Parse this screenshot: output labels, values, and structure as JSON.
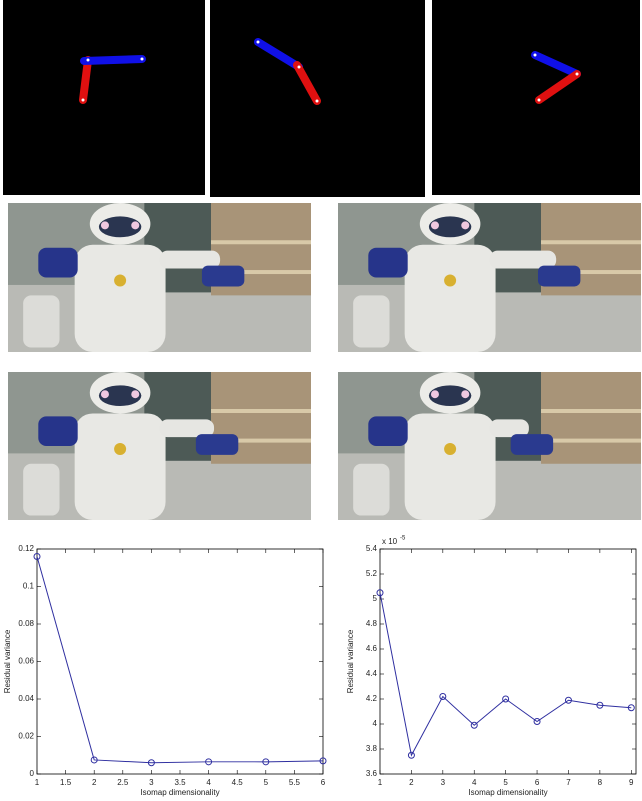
{
  "chart_data": [
    {
      "type": "line",
      "x": [
        1,
        2,
        3,
        4,
        5,
        6
      ],
      "values": [
        0.116,
        0.0075,
        0.006,
        0.0065,
        0.0065,
        0.007
      ],
      "color": "#2f2fa0",
      "xlim": [
        1,
        6
      ],
      "xticks": [
        1,
        1.5,
        2,
        2.5,
        3,
        3.5,
        4,
        4.5,
        5,
        5.5,
        6
      ],
      "ylim": [
        0,
        0.12
      ],
      "yticks": [
        0,
        0.02,
        0.04,
        0.06,
        0.08,
        0.1,
        0.12
      ],
      "x_label": "Isomap dimensionality",
      "y_label": "Residual variance"
    },
    {
      "type": "line",
      "x": [
        1,
        2,
        3,
        4,
        5,
        6,
        7,
        8,
        9
      ],
      "values": [
        5.05,
        3.75,
        4.22,
        3.99,
        4.2,
        4.02,
        4.19,
        4.15,
        4.13
      ],
      "color": "#2f2fa0",
      "xlim": [
        1,
        9.15
      ],
      "xticks": [
        1,
        2,
        3,
        4,
        5,
        6,
        7,
        8,
        9
      ],
      "ylim": [
        3.6,
        5.4
      ],
      "yticks": [
        3.6,
        3.8,
        4,
        4.2,
        4.4,
        4.6,
        4.8,
        5,
        5.2,
        5.4
      ],
      "y_multiplier": {
        "base": "x 10",
        "exponent": "-5"
      },
      "x_label": "Isomap dimensionality",
      "y_label": "Residual variance"
    }
  ]
}
